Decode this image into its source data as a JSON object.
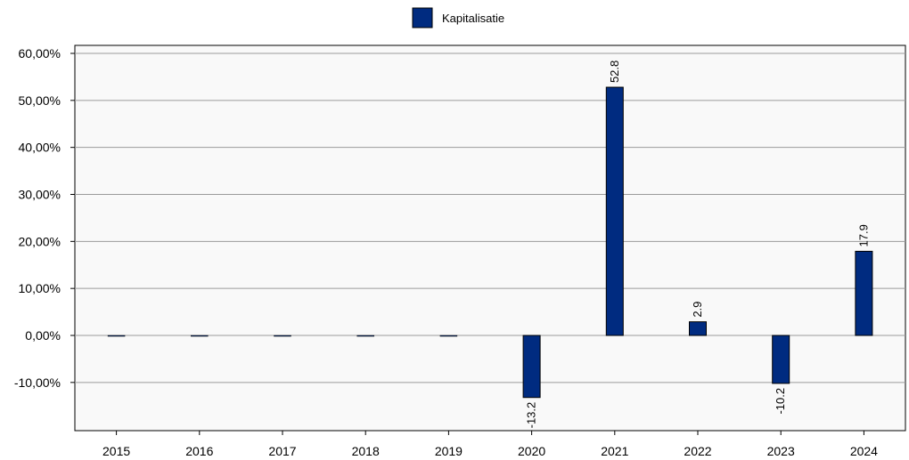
{
  "chart_data": {
    "type": "bar",
    "categories": [
      "2015",
      "2016",
      "2017",
      "2018",
      "2019",
      "2020",
      "2021",
      "2022",
      "2023",
      "2024"
    ],
    "series": [
      {
        "name": "Kapitalisatie",
        "values": [
          0,
          0,
          0,
          0,
          0,
          -13.2,
          52.8,
          2.9,
          -10.2,
          17.9
        ],
        "data_labels": [
          "",
          "",
          "",
          "",
          "",
          "-13.2",
          "52.8",
          "2.9",
          "-10.2",
          "17.9"
        ],
        "color": "#002b80"
      }
    ],
    "y_ticks": [
      -10,
      0,
      10,
      20,
      30,
      40,
      50,
      60
    ],
    "y_tick_labels": [
      "-10,00%",
      "0,00%",
      "10,00%",
      "20,00%",
      "30,00%",
      "40,00%",
      "50,00%",
      "60,00%"
    ],
    "ylim": [
      -20,
      60
    ],
    "grid": true,
    "legend_position": "top-center",
    "colors": {
      "bar": "#002b80",
      "plot_background": "#f9f9f9",
      "grid": "#9a9a9a"
    }
  }
}
